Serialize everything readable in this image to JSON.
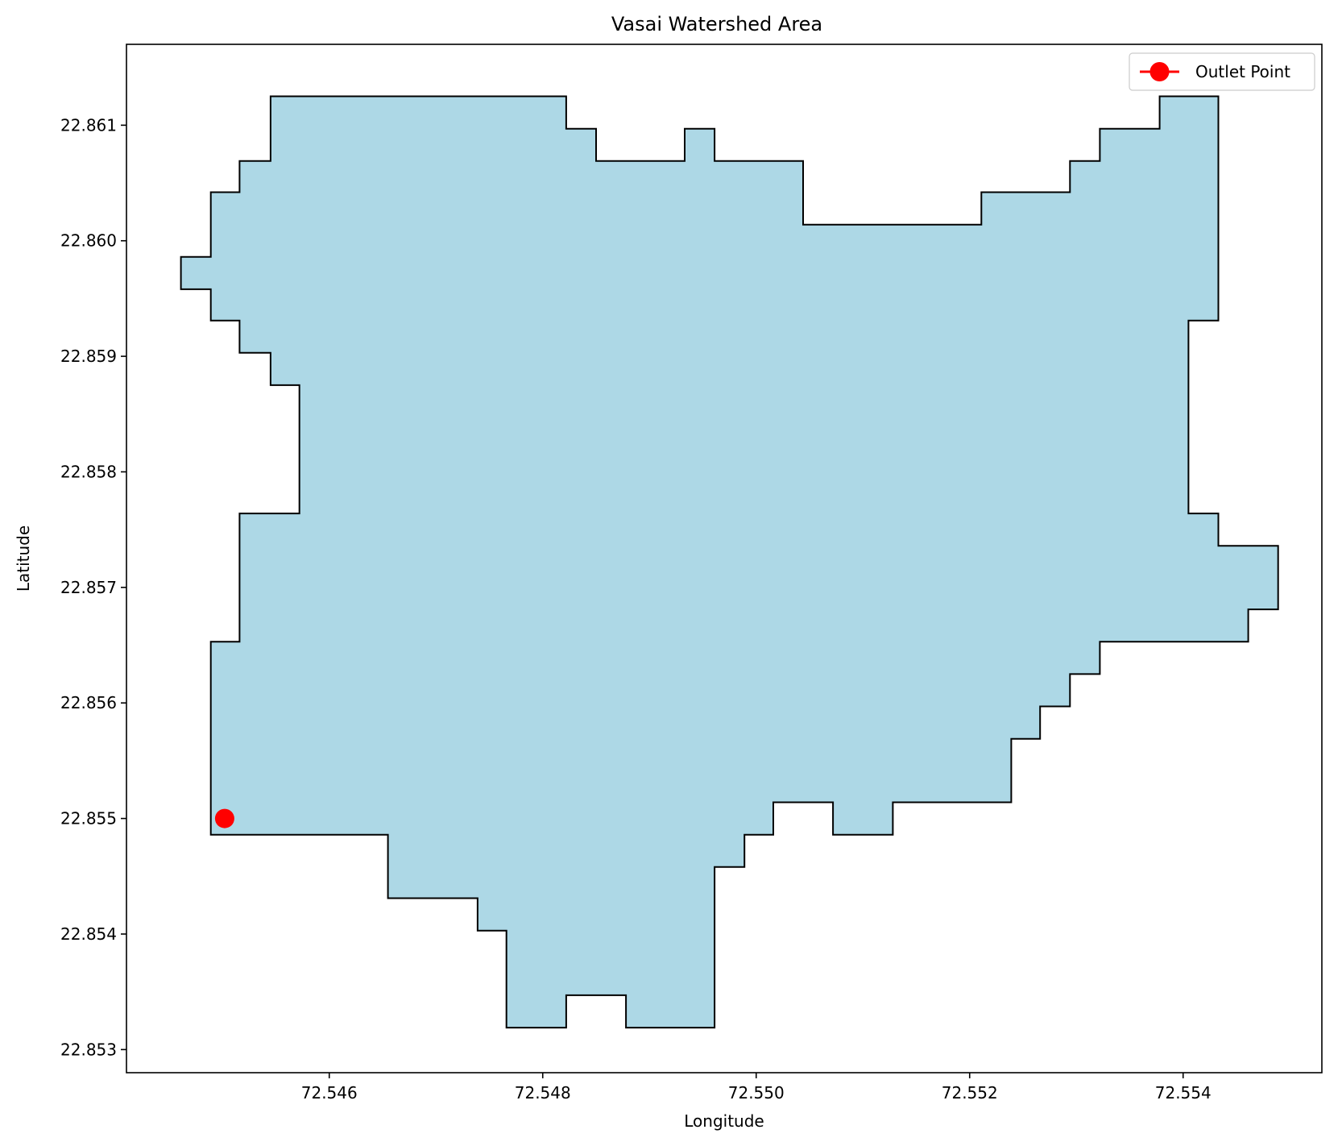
{
  "chart_data": {
    "type": "map",
    "title": "Vasai Watershed Area",
    "xlabel": "Longitude",
    "ylabel": "Latitude",
    "xlim": [
      72.5441,
      72.5553
    ],
    "ylim": [
      22.8528,
      22.8617
    ],
    "x_ticks": [
      72.546,
      72.548,
      72.55,
      72.552,
      72.554
    ],
    "x_tick_labels": [
      "72.546",
      "72.548",
      "72.550",
      "72.552",
      "72.554"
    ],
    "y_ticks": [
      22.853,
      22.854,
      22.855,
      22.856,
      22.857,
      22.858,
      22.859,
      22.86,
      22.861
    ],
    "y_tick_labels": [
      "22.853",
      "22.854",
      "22.855",
      "22.856",
      "22.857",
      "22.858",
      "22.859",
      "22.860",
      "22.861"
    ],
    "grid": false,
    "legend": {
      "placement": "top-right",
      "entries": [
        "Outlet Point"
      ]
    },
    "polygon": {
      "fill_color": "#add8e6",
      "edge_color": "#000000",
      "vertices": [
        [
          72.54545,
          22.86125
        ],
        [
          72.54822,
          22.86125
        ],
        [
          72.54822,
          22.86097
        ],
        [
          72.5485,
          22.86097
        ],
        [
          72.5485,
          22.86069
        ],
        [
          72.54933,
          22.86069
        ],
        [
          72.54933,
          22.86097
        ],
        [
          72.54961,
          22.86097
        ],
        [
          72.54961,
          22.86069
        ],
        [
          72.55044,
          22.86069
        ],
        [
          72.55044,
          22.86014
        ],
        [
          72.55211,
          22.86014
        ],
        [
          72.55211,
          22.86042
        ],
        [
          72.55294,
          22.86042
        ],
        [
          72.55294,
          22.86069
        ],
        [
          72.55322,
          22.86069
        ],
        [
          72.55322,
          22.86097
        ],
        [
          72.55378,
          22.86097
        ],
        [
          72.55378,
          22.86125
        ],
        [
          72.55433,
          22.86125
        ],
        [
          72.55433,
          22.85931
        ],
        [
          72.55405,
          22.85931
        ],
        [
          72.55405,
          22.85764
        ],
        [
          72.55433,
          22.85764
        ],
        [
          72.55433,
          22.85736
        ],
        [
          72.55489,
          22.85736
        ],
        [
          72.55489,
          22.85681
        ],
        [
          72.55461,
          22.85681
        ],
        [
          72.55461,
          22.85653
        ],
        [
          72.55322,
          22.85653
        ],
        [
          72.55322,
          22.85625
        ],
        [
          72.55294,
          22.85625
        ],
        [
          72.55294,
          22.85597
        ],
        [
          72.55266,
          22.85597
        ],
        [
          72.55266,
          22.85569
        ],
        [
          72.55239,
          22.85569
        ],
        [
          72.55239,
          22.85514
        ],
        [
          72.55128,
          22.85514
        ],
        [
          72.55128,
          22.85486
        ],
        [
          72.55072,
          22.85486
        ],
        [
          72.55072,
          22.85514
        ],
        [
          72.55016,
          22.85514
        ],
        [
          72.55016,
          22.85486
        ],
        [
          72.54989,
          22.85486
        ],
        [
          72.54989,
          22.85458
        ],
        [
          72.54961,
          22.85458
        ],
        [
          72.54961,
          22.85319
        ],
        [
          72.54878,
          22.85319
        ],
        [
          72.54878,
          22.85347
        ],
        [
          72.54822,
          22.85347
        ],
        [
          72.54822,
          22.85319
        ],
        [
          72.54766,
          22.85319
        ],
        [
          72.54766,
          22.85403
        ],
        [
          72.54739,
          22.85403
        ],
        [
          72.54739,
          22.85431
        ],
        [
          72.54655,
          22.85431
        ],
        [
          72.54655,
          22.85486
        ],
        [
          72.54489,
          22.85486
        ],
        [
          72.54489,
          22.85653
        ],
        [
          72.54516,
          22.85653
        ],
        [
          72.54516,
          22.85764
        ],
        [
          72.54572,
          22.85764
        ],
        [
          72.54572,
          22.85875
        ],
        [
          72.54545,
          22.85875
        ],
        [
          72.54545,
          22.85903
        ],
        [
          72.54516,
          22.85903
        ],
        [
          72.54516,
          22.85931
        ],
        [
          72.54489,
          22.85931
        ],
        [
          72.54489,
          22.85958
        ],
        [
          72.54461,
          22.85958
        ],
        [
          72.54461,
          22.85986
        ],
        [
          72.54489,
          22.85986
        ],
        [
          72.54489,
          22.86042
        ],
        [
          72.54516,
          22.86042
        ],
        [
          72.54516,
          22.86069
        ],
        [
          72.54545,
          22.86069
        ]
      ]
    },
    "series": [
      {
        "name": "Outlet Point",
        "type": "scatter",
        "color": "#ff0000",
        "points": [
          [
            72.54502,
            22.855
          ]
        ]
      }
    ]
  }
}
